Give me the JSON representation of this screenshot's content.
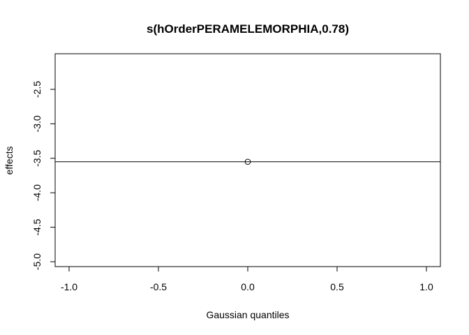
{
  "chart_data": {
    "type": "scatter",
    "title": "s(hOrderPERAMELEMORPHIA,0.78)",
    "xlabel": "Gaussian quantiles",
    "ylabel": "effects",
    "xlim": [
      -1.0,
      1.0
    ],
    "ylim": [
      -5.0,
      -2.2
    ],
    "x_ticks": [
      -1.0,
      -0.5,
      0.0,
      0.5,
      1.0
    ],
    "x_tick_labels": [
      "-1.0",
      "-0.5",
      "0.0",
      "0.5",
      "1.0"
    ],
    "y_ticks": [
      -5.0,
      -4.5,
      -4.0,
      -3.5,
      -3.0,
      -2.5
    ],
    "y_tick_labels": [
      "-5.0",
      "-4.5",
      "-4.0",
      "-3.5",
      "-3.0",
      "-2.5"
    ],
    "points": [
      {
        "x": 0.0,
        "y": -3.55
      }
    ],
    "reference_line": {
      "type": "horizontal",
      "y": -3.55
    },
    "grid": false,
    "marker": "open-circle",
    "colors": {
      "line": "#000000",
      "point": "#000000",
      "background": "#ffffff"
    }
  }
}
